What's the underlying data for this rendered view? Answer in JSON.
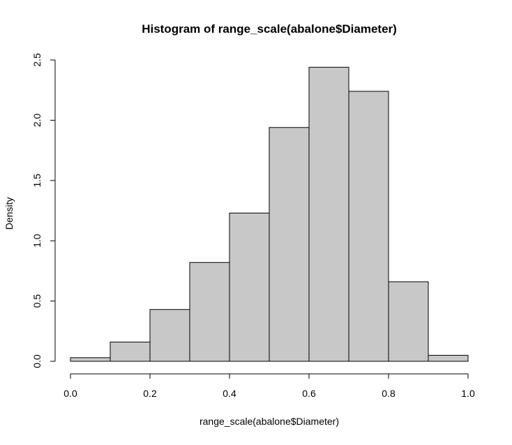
{
  "chart_data": {
    "type": "bar",
    "title": "Histogram of range_scale(abalone$Diameter)",
    "xlabel": "range_scale(abalone$Diameter)",
    "ylabel": "Density",
    "xlim": [
      0.0,
      1.0
    ],
    "ylim": [
      0.0,
      2.5
    ],
    "x_ticks": [
      "0.0",
      "0.2",
      "0.4",
      "0.6",
      "0.8",
      "1.0"
    ],
    "y_ticks": [
      "0.0",
      "0.5",
      "1.0",
      "1.5",
      "2.0",
      "2.5"
    ],
    "bins": [
      {
        "from": 0.0,
        "to": 0.1,
        "value": 0.03
      },
      {
        "from": 0.1,
        "to": 0.2,
        "value": 0.16
      },
      {
        "from": 0.2,
        "to": 0.3,
        "value": 0.43
      },
      {
        "from": 0.3,
        "to": 0.4,
        "value": 0.82
      },
      {
        "from": 0.4,
        "to": 0.5,
        "value": 1.23
      },
      {
        "from": 0.5,
        "to": 0.6,
        "value": 1.94
      },
      {
        "from": 0.6,
        "to": 0.7,
        "value": 2.44
      },
      {
        "from": 0.7,
        "to": 0.8,
        "value": 2.24
      },
      {
        "from": 0.8,
        "to": 0.9,
        "value": 0.66
      },
      {
        "from": 0.9,
        "to": 1.0,
        "value": 0.05
      }
    ],
    "bar_color": "#c8c8c8",
    "bar_border_color": "#000000",
    "grid": false,
    "legend": "none"
  }
}
